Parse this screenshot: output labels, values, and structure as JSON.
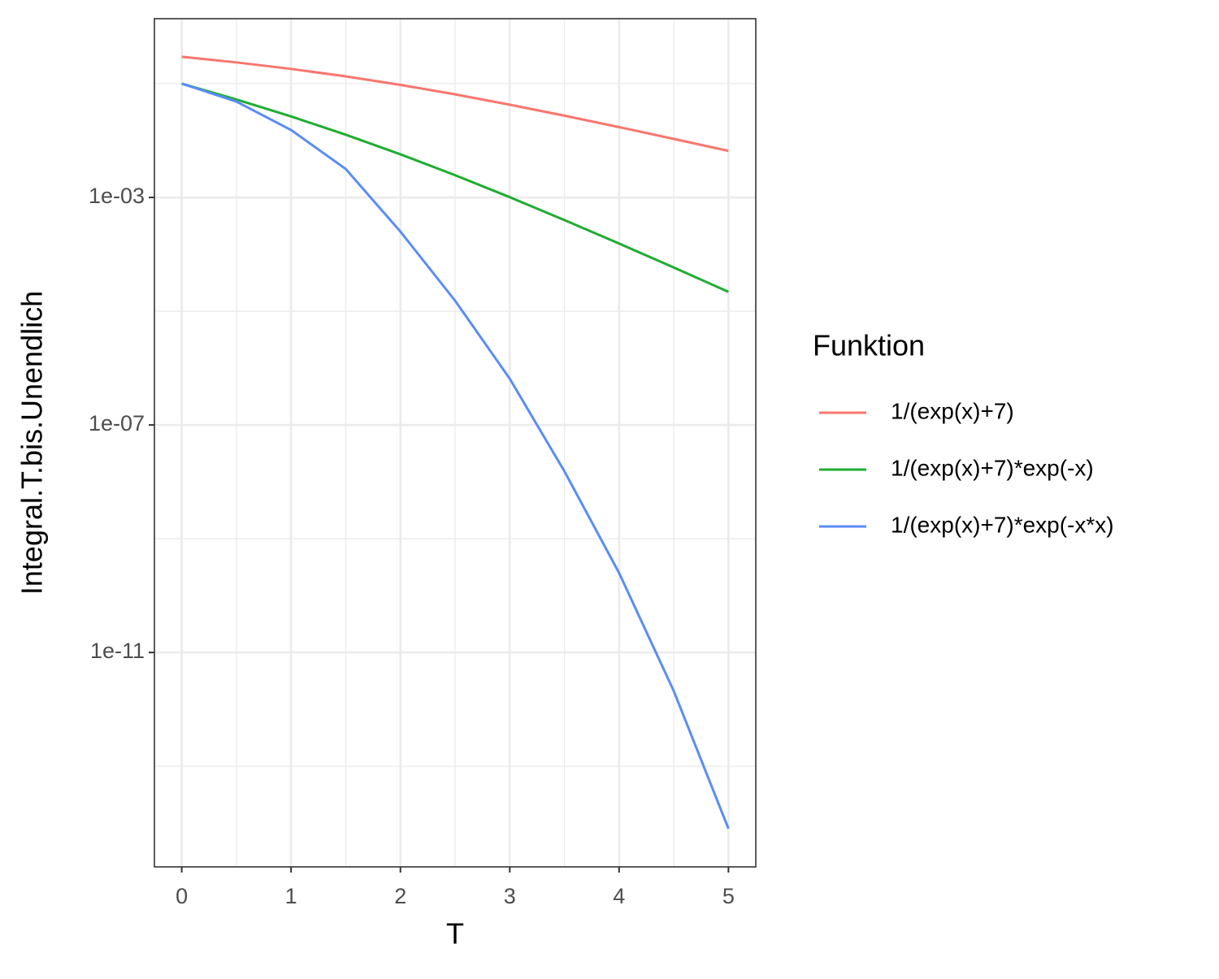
{
  "chart_data": {
    "type": "line",
    "x_label": "T",
    "y_label": "Integral.T.bis.Unendlich",
    "legend_title": "Funktion",
    "legend": "right",
    "log_y": true,
    "grid": true,
    "x": [
      0,
      0.5,
      1,
      1.5,
      2,
      2.5,
      3,
      3.5,
      4,
      4.5,
      5
    ],
    "series": [
      {
        "name": "1/(exp(x)+7)",
        "color": "#f8766d",
        "values": [
          0.2971,
          0.2368,
          0.182,
          0.1344,
          0.0952,
          0.0649,
          0.0427,
          0.0274,
          0.01723,
          0.0107,
          0.00659
        ]
      },
      {
        "name": "1/(exp(x)+7)*exp(-x)",
        "color": "#1fad31",
        "values": [
          0.1004,
          0.05282,
          0.02655,
          0.01268,
          0.005732,
          0.002461,
          0.001011,
          0.0004,
          0.0001547,
          5.87e-05,
          2.19e-05
        ]
      },
      {
        "name": "1/(exp(x)+7)*exp(-x*x)",
        "color": "#5a8cf8",
        "values": [
          0.1004,
          0.0485,
          0.01534,
          0.00316,
          0.000251,
          1.53e-05,
          6.5e-07,
          1.53e-08,
          2.5e-10,
          2.1e-12,
          8e-15
        ]
      }
    ],
    "xlim": [
      -0.25,
      5.25
    ],
    "xticks": [
      0,
      1,
      2,
      3,
      4,
      5
    ],
    "x_minor_grid": [
      0.5,
      1.5,
      2.5,
      3.5,
      4.5
    ],
    "ylim": [
      1.7e-15,
      1.39
    ],
    "yticks": [
      {
        "value": 0.001,
        "label": "1e-03"
      },
      {
        "value": 1e-07,
        "label": "1e-07"
      },
      {
        "value": 1e-11,
        "label": "1e-11"
      }
    ],
    "y_minor_grid": [
      0.1,
      1e-05,
      1e-09,
      1e-13
    ]
  }
}
